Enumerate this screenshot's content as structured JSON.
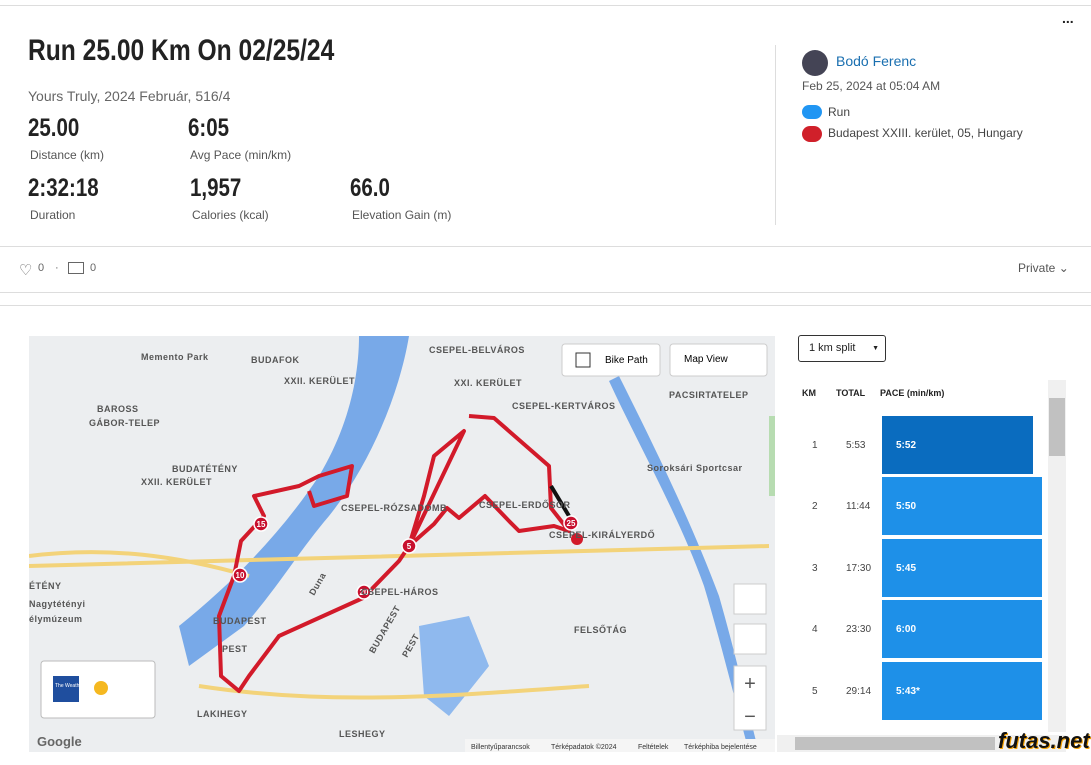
{
  "header": {
    "title": "Run 25.00 Km On 02/25/24",
    "subtitle": "Yours Truly, 2024 Február, 516/4",
    "menu": "..."
  },
  "stats": [
    {
      "value": "25.00",
      "label": "Distance (km)"
    },
    {
      "value": "6:05",
      "label": "Avg Pace (min/km)"
    },
    {
      "value": "2:32:18",
      "label": "Duration"
    },
    {
      "value": "1,957",
      "label": "Calories (kcal)"
    },
    {
      "value": "66.0",
      "label": "Elevation Gain (m)"
    }
  ],
  "athlete": {
    "name": "Bodó Ferenc",
    "date": "Feb 25, 2024 at 05:04 AM",
    "activity": "Run",
    "location": "Budapest XXIII. kerület, 05, Hungary"
  },
  "social": {
    "likes": "0",
    "comments": "0",
    "privacy": "Private"
  },
  "map": {
    "bike_path": "Bike Path",
    "map_view": "Map View",
    "google": "Google",
    "weather": "The Weather Channel",
    "labels": [
      "Memento Park",
      "BUDAFOK",
      "XXII. KERÜLET",
      "BAROSS",
      "GÁBOR-TELEP",
      "BUDATÉTÉNY",
      "XXII. KERÜLET",
      "CSEPEL-BELVÁROS",
      "XXI. KERÜLET",
      "CSEPEL-KERTVÁROS",
      "PACSIRTATELEP",
      "CSEPEL-RÓZSADOMB",
      "CSEPEL-ERDŐSOR",
      "CSEPEL-KIRÁLYERDŐ",
      "Soroksári Sportcsar",
      "CSEPEL-HÁROS",
      "BUDAPEST",
      "PEST",
      "BUDAPEST",
      "PEST",
      "Duna",
      "FELSŐTÁG",
      "LAKIHEGY",
      "LESHEGY",
      "ÉTÉNY",
      "Nagytétényi",
      "élymúzeum"
    ],
    "markers": [
      "5",
      "10",
      "15",
      "20",
      "25"
    ],
    "footer": [
      "Billentyűparancsok",
      "Térképadatok ©2024",
      "Feltételek",
      "Térképhiba bejelentése"
    ]
  },
  "splits": {
    "selector": "1 km split",
    "columns": [
      "KM",
      "TOTAL",
      "PACE (min/km)"
    ],
    "rows": [
      [
        "1",
        "5:53",
        "5:52"
      ],
      [
        "2",
        "11:44",
        "5:50"
      ],
      [
        "3",
        "17:30",
        "5:45"
      ],
      [
        "4",
        "23:30",
        "6:00"
      ],
      [
        "5",
        "29:14",
        "5:43*"
      ]
    ]
  },
  "logo": "futas.net"
}
